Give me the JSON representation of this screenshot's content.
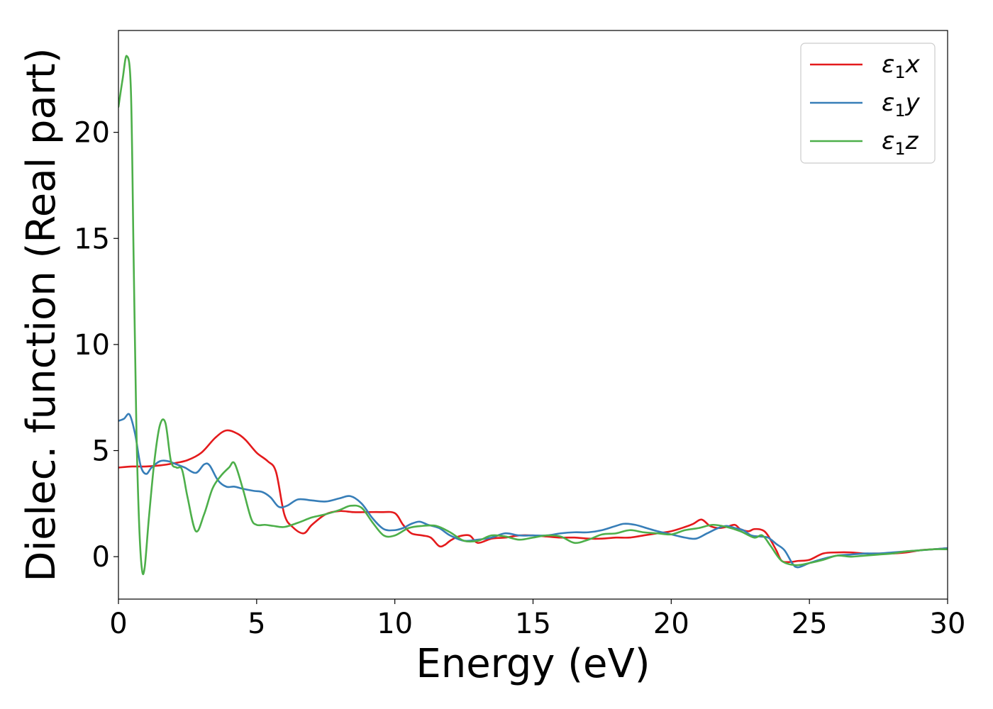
{
  "chart_data": {
    "type": "line",
    "xlabel": "Energy (eV)",
    "ylabel": "Dielec. function (Real part)",
    "xlim": [
      0,
      30
    ],
    "ylim": [
      -2,
      24.8
    ],
    "xticks": [
      0,
      5,
      10,
      15,
      20,
      25,
      30
    ],
    "yticks": [
      0,
      5,
      10,
      15,
      20
    ],
    "grid": false,
    "legend_position": "top-right",
    "series": [
      {
        "name": "ε1x",
        "legend": {
          "base": "ε",
          "sub": "1",
          "axis": "x"
        },
        "color": "#e41a1c",
        "x": [
          0,
          0.5,
          1,
          1.5,
          2,
          2.5,
          3,
          3.5,
          3.9,
          4.3,
          4.6,
          5,
          5.4,
          5.7,
          6,
          6.3,
          6.7,
          7,
          7.5,
          8,
          8.5,
          9,
          9.5,
          10,
          10.3,
          10.6,
          11,
          11.3,
          11.6,
          11.8,
          12,
          12.3,
          12.7,
          13,
          13.5,
          14,
          14.5,
          15,
          15.5,
          16,
          16.5,
          17,
          17.5,
          18,
          18.5,
          19,
          19.5,
          20,
          20.5,
          20.8,
          21.1,
          21.4,
          21.7,
          22,
          22.3,
          22.5,
          22.8,
          23,
          23.3,
          23.5,
          23.8,
          24,
          24.3,
          24.6,
          25,
          25.5,
          26,
          26.5,
          27,
          27.5,
          28,
          28.5,
          29,
          29.5,
          30
        ],
        "y": [
          4.2,
          4.25,
          4.25,
          4.3,
          4.4,
          4.55,
          4.9,
          5.6,
          5.95,
          5.8,
          5.5,
          4.9,
          4.5,
          4.0,
          2.0,
          1.4,
          1.1,
          1.5,
          2.0,
          2.15,
          2.1,
          2.1,
          2.1,
          2.05,
          1.5,
          1.1,
          1.0,
          0.9,
          0.5,
          0.55,
          0.75,
          0.95,
          1.0,
          0.65,
          0.85,
          0.9,
          1.0,
          1.0,
          0.95,
          0.9,
          0.9,
          0.85,
          0.85,
          0.9,
          0.9,
          1.0,
          1.1,
          1.2,
          1.4,
          1.55,
          1.75,
          1.45,
          1.35,
          1.4,
          1.5,
          1.3,
          1.2,
          1.3,
          1.25,
          1.0,
          0.3,
          -0.2,
          -0.25,
          -0.2,
          -0.15,
          0.15,
          0.2,
          0.2,
          0.15,
          0.15,
          0.15,
          0.2,
          0.3,
          0.35,
          0.4
        ]
      },
      {
        "name": "ε1y",
        "legend": {
          "base": "ε",
          "sub": "1",
          "axis": "y"
        },
        "color": "#377eb8",
        "x": [
          0,
          0.2,
          0.4,
          0.6,
          0.8,
          1.0,
          1.2,
          1.5,
          1.8,
          2.1,
          2.4,
          2.8,
          3.1,
          3.3,
          3.6,
          3.9,
          4.2,
          4.5,
          4.9,
          5.2,
          5.5,
          5.8,
          6.1,
          6.5,
          7,
          7.5,
          8,
          8.4,
          8.8,
          9.2,
          9.6,
          10,
          10.3,
          10.6,
          10.9,
          11.2,
          11.6,
          12,
          12.5,
          13,
          13.5,
          14,
          14.5,
          15,
          15.5,
          16,
          16.5,
          17,
          17.5,
          18,
          18.3,
          18.7,
          19.1,
          19.5,
          20,
          20.5,
          20.9,
          21.3,
          21.7,
          22,
          22.3,
          22.6,
          22.9,
          23.2,
          23.5,
          23.8,
          24.1,
          24.4,
          24.6,
          25,
          25.5,
          26,
          26.5,
          27,
          27.5,
          28,
          28.5,
          29,
          29.5,
          30
        ],
        "y": [
          6.4,
          6.5,
          6.7,
          5.8,
          4.3,
          3.9,
          4.2,
          4.5,
          4.5,
          4.35,
          4.2,
          3.95,
          4.35,
          4.3,
          3.6,
          3.3,
          3.3,
          3.2,
          3.1,
          3.05,
          2.8,
          2.35,
          2.4,
          2.7,
          2.65,
          2.6,
          2.75,
          2.85,
          2.5,
          1.8,
          1.3,
          1.25,
          1.35,
          1.55,
          1.65,
          1.5,
          1.35,
          1.0,
          0.75,
          0.8,
          0.9,
          1.1,
          1.0,
          1.0,
          1.0,
          1.1,
          1.15,
          1.15,
          1.25,
          1.45,
          1.55,
          1.5,
          1.35,
          1.2,
          1.05,
          0.9,
          0.85,
          1.1,
          1.35,
          1.45,
          1.35,
          1.25,
          1.0,
          0.95,
          0.9,
          0.6,
          0.3,
          -0.35,
          -0.5,
          -0.3,
          -0.1,
          0.05,
          0.1,
          0.15,
          0.15,
          0.2,
          0.25,
          0.3,
          0.35,
          0.4
        ]
      },
      {
        "name": "ε1z",
        "legend": {
          "base": "ε",
          "sub": "1",
          "axis": "z"
        },
        "color": "#4daf4a",
        "x": [
          0,
          0.15,
          0.3,
          0.45,
          0.55,
          0.65,
          0.75,
          0.85,
          0.95,
          1.1,
          1.3,
          1.5,
          1.7,
          1.9,
          2.1,
          2.3,
          2.5,
          2.8,
          3.1,
          3.4,
          3.7,
          4.0,
          4.2,
          4.5,
          4.8,
          5.0,
          5.3,
          5.6,
          6.0,
          6.5,
          7,
          7.5,
          8,
          8.4,
          8.8,
          9.2,
          9.6,
          10,
          10.5,
          11,
          11.5,
          12,
          12.5,
          13,
          13.5,
          14,
          14.5,
          15,
          15.5,
          16,
          16.5,
          17,
          17.5,
          18,
          18.5,
          19,
          19.5,
          20,
          20.5,
          21,
          21.5,
          22,
          22.5,
          23,
          23.3,
          23.6,
          24,
          24.5,
          25,
          25.5,
          26,
          26.5,
          27,
          27.5,
          28,
          28.5,
          29,
          29.5,
          30
        ],
        "y": [
          21.2,
          22.5,
          23.6,
          22.0,
          14.0,
          6.0,
          1.5,
          -0.6,
          -0.5,
          1.8,
          4.5,
          6.2,
          6.3,
          4.5,
          4.2,
          4.1,
          2.8,
          1.2,
          2.0,
          3.2,
          3.8,
          4.2,
          4.4,
          3.2,
          1.8,
          1.5,
          1.5,
          1.45,
          1.4,
          1.6,
          1.85,
          2.0,
          2.2,
          2.4,
          2.3,
          1.6,
          1.0,
          1.0,
          1.35,
          1.45,
          1.45,
          1.15,
          0.75,
          0.75,
          1.0,
          0.95,
          0.8,
          0.9,
          1.0,
          0.95,
          0.65,
          0.8,
          1.05,
          1.1,
          1.25,
          1.15,
          1.1,
          1.05,
          1.25,
          1.35,
          1.5,
          1.4,
          1.2,
          0.9,
          1.0,
          0.5,
          -0.2,
          -0.4,
          -0.3,
          -0.15,
          0.05,
          0.0,
          0.05,
          0.1,
          0.15,
          0.25,
          0.3,
          0.35,
          0.35
        ]
      }
    ]
  }
}
